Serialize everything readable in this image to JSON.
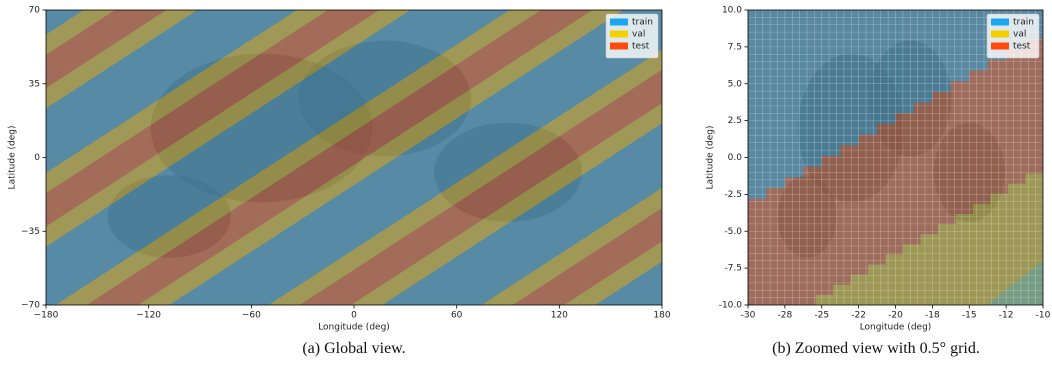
{
  "chart_data": [
    {
      "type": "map",
      "caption": "(a) Global view.",
      "xlabel": "Longitude (deg)",
      "ylabel": "Latitude (deg)",
      "xlim": [
        -180,
        180
      ],
      "xticks": [
        {
          "value": -180,
          "label": "−180"
        },
        {
          "value": -120,
          "label": "−120"
        },
        {
          "value": -60,
          "label": "−60"
        },
        0,
        60,
        120,
        180
      ],
      "ylim": [
        -70,
        70
      ],
      "yticks": [
        {
          "value": -70,
          "label": "−70"
        },
        {
          "value": -35,
          "label": "−35"
        },
        0,
        35,
        70
      ],
      "legend": "upper right",
      "series": [
        {
          "name": "train",
          "color": "#1aa7f0"
        },
        {
          "name": "val",
          "color": "#f5d000"
        },
        {
          "name": "test",
          "color": "#ff4a0a"
        }
      ]
    },
    {
      "type": "map",
      "caption": "(b) Zoomed view with 0.5° grid.",
      "xlabel": "Longitude (deg)",
      "ylabel": "Latitude (deg)",
      "xlim": [
        -30,
        -10
      ],
      "xticks": [
        {
          "value": -30,
          "label": "-30"
        },
        {
          "value": -27.5,
          "label": "-28"
        },
        {
          "value": -25,
          "label": "-25"
        },
        {
          "value": -22.5,
          "label": "-22"
        },
        {
          "value": -20,
          "label": "-20"
        },
        {
          "value": -17.5,
          "label": "-18"
        },
        {
          "value": -15,
          "label": "-15"
        },
        {
          "value": -12.5,
          "label": "-12"
        },
        {
          "value": -10,
          "label": "-10"
        }
      ],
      "ylim": [
        -10,
        10
      ],
      "yticks": [
        {
          "value": -10,
          "label": "-10.0"
        },
        {
          "value": -7.5,
          "label": "-7.5"
        },
        {
          "value": -5,
          "label": "-5.0"
        },
        {
          "value": -2.5,
          "label": "-2.5"
        },
        {
          "value": 0,
          "label": "0.0"
        },
        {
          "value": 2.5,
          "label": "2.5"
        },
        {
          "value": 5,
          "label": "5.0"
        },
        {
          "value": 7.5,
          "label": "7.5"
        },
        {
          "value": 10,
          "label": "10.0"
        }
      ],
      "legend": "upper right",
      "series": [
        {
          "name": "train",
          "color": "#1aa7f0"
        },
        {
          "name": "val",
          "color": "#f5d000"
        },
        {
          "name": "test",
          "color": "#ff4a0a"
        }
      ]
    }
  ]
}
